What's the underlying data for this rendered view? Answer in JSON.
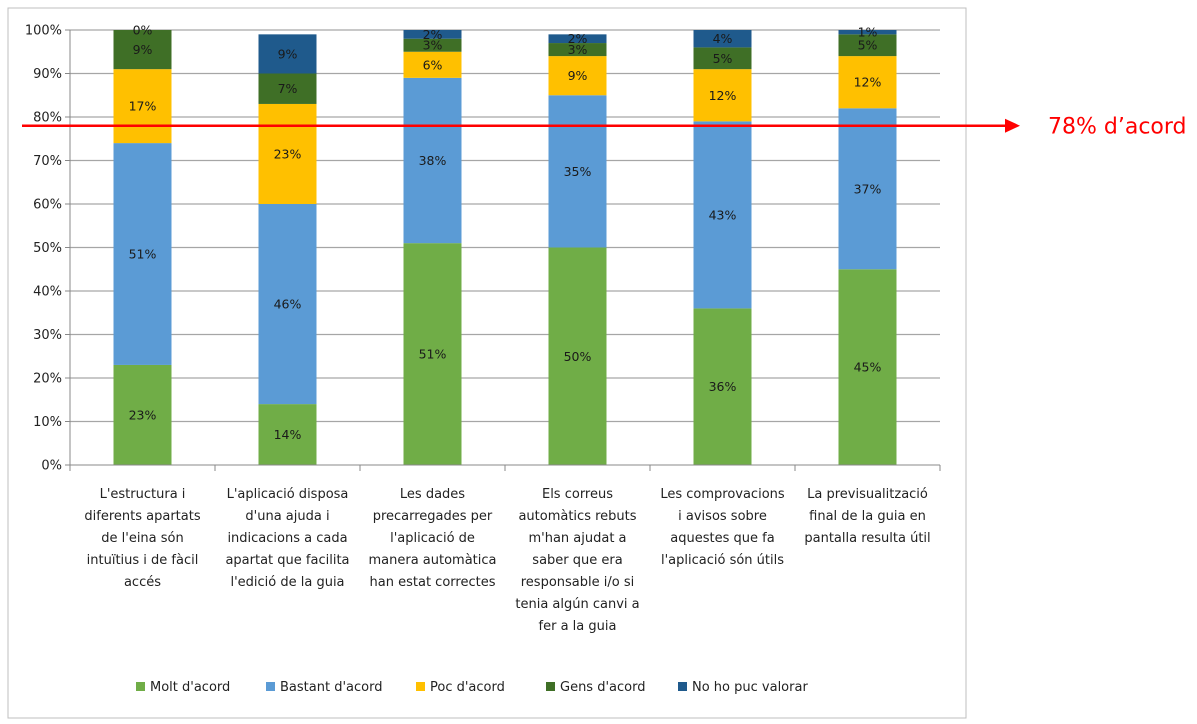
{
  "chart_data": {
    "type": "bar",
    "stacked": true,
    "percent": true,
    "categories": [
      [
        "L'estructura i",
        "diferents apartats",
        "de l'eina són",
        "intuïtius i de fàcil",
        "accés"
      ],
      [
        "L'aplicació disposa",
        "d'una ajuda i",
        "indicacions a cada",
        "apartat que facilita",
        "l'edició de la guia"
      ],
      [
        "Les dades",
        "precarregades per",
        "l'aplicació de",
        "manera automàtica",
        "han estat correctes"
      ],
      [
        "Els correus",
        "automàtics rebuts",
        "m'han ajudat a",
        "saber que era",
        "responsable i/o si",
        "tenia algún canvi a",
        "fer a la guia"
      ],
      [
        "Les comprovacions",
        "i avisos sobre",
        "aquestes que fa",
        "l'aplicació són útils"
      ],
      [
        "La previsualització",
        "final de la guia en",
        "pantalla resulta útil"
      ]
    ],
    "series": [
      {
        "name": "Molt d'acord",
        "color": "#70ad47",
        "values": [
          23,
          14,
          51,
          50,
          36,
          45
        ]
      },
      {
        "name": "Bastant d'acord",
        "color": "#5b9bd5",
        "values": [
          51,
          46,
          38,
          35,
          43,
          37
        ]
      },
      {
        "name": "Poc d'acord",
        "color": "#ffc000",
        "values": [
          17,
          23,
          6,
          9,
          12,
          12
        ]
      },
      {
        "name": "Gens d'acord",
        "color": "#3f6f26",
        "values": [
          9,
          7,
          3,
          3,
          5,
          5
        ]
      },
      {
        "name": "No ho puc valorar",
        "color": "#1f5a8c",
        "values": [
          0,
          9,
          2,
          2,
          4,
          1
        ]
      }
    ],
    "y_ticks": [
      "0%",
      "10%",
      "20%",
      "30%",
      "40%",
      "50%",
      "60%",
      "70%",
      "80%",
      "90%",
      "100%"
    ],
    "ylim": [
      0,
      100
    ],
    "grid": true,
    "legend_position": "bottom",
    "annotation": {
      "text": "78% d’acord",
      "value": 78,
      "color": "#ff0000"
    }
  }
}
